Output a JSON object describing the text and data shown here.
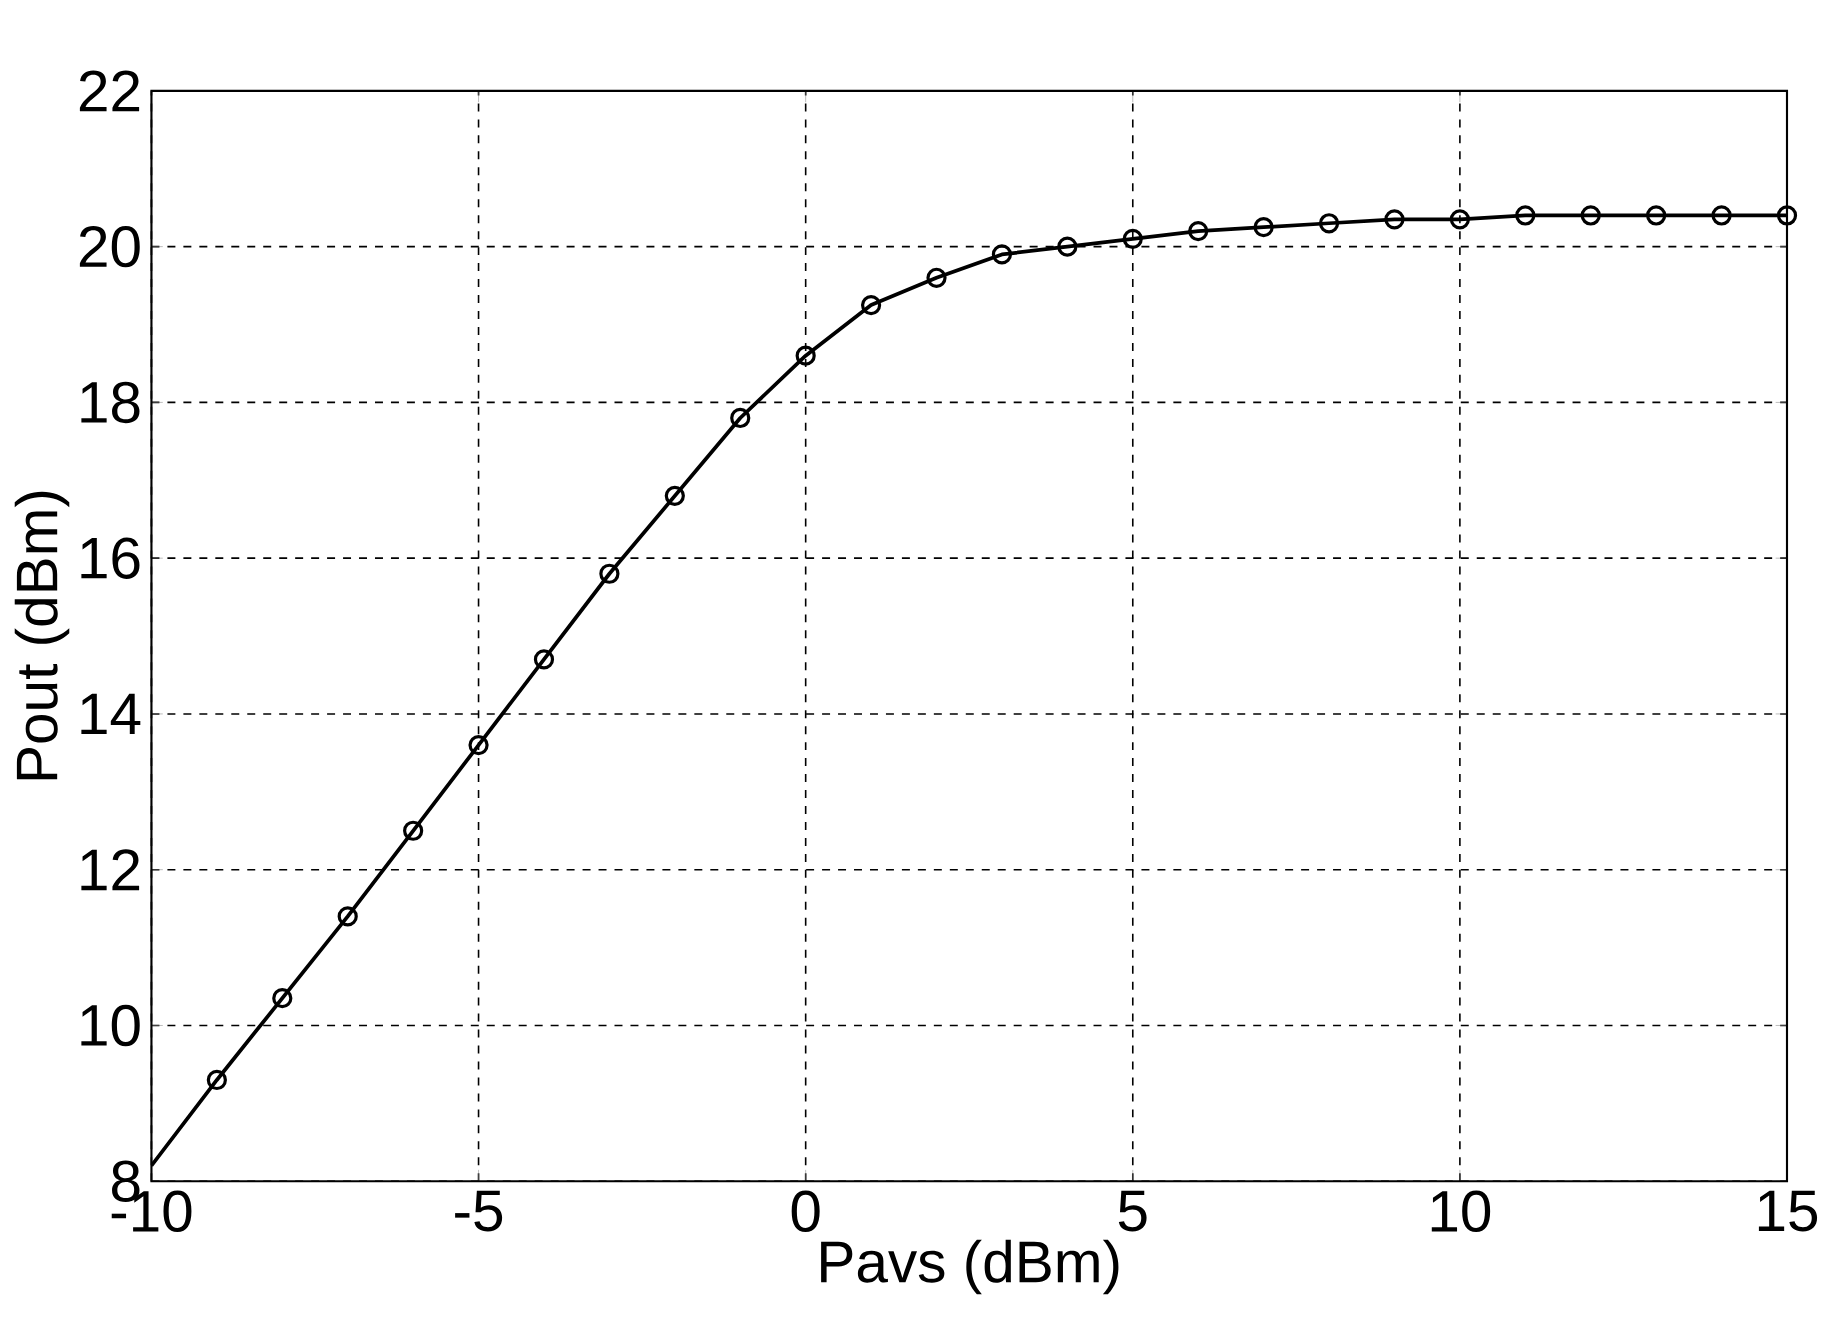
{
  "chart_data": {
    "type": "line",
    "xlabel": "Pavs (dBm)",
    "ylabel": "Pout (dBm)",
    "xlim": [
      -10,
      15
    ],
    "ylim": [
      8,
      22
    ],
    "xticks": [
      -10,
      -5,
      0,
      5,
      10,
      15
    ],
    "yticks": [
      8,
      10,
      12,
      14,
      16,
      18,
      20,
      22
    ],
    "grid": true,
    "line_style": "solid",
    "series": [
      {
        "marker": "none",
        "color": "#000000",
        "x": [
          -10,
          -9,
          -8,
          -7,
          -6,
          -5,
          -4,
          -3,
          -2,
          -1,
          0,
          1,
          2,
          3,
          4,
          5,
          6,
          7,
          8,
          9,
          10,
          11,
          12,
          13,
          14,
          15
        ],
        "values": [
          8.2,
          9.3,
          10.35,
          11.4,
          12.5,
          13.6,
          14.7,
          15.8,
          16.8,
          17.8,
          18.6,
          19.25,
          19.6,
          19.9,
          20.0,
          20.1,
          20.2,
          20.25,
          20.3,
          20.35,
          20.35,
          20.4,
          20.4,
          20.4,
          20.4,
          20.4
        ]
      },
      {
        "type": "scatter",
        "marker": "circle",
        "color": "#000000",
        "x": [
          -9,
          -8,
          -7,
          -6,
          -5,
          -4,
          -3,
          -2,
          -1,
          0,
          1,
          2,
          3,
          4,
          5,
          6,
          7,
          8,
          9,
          10,
          11,
          12,
          13,
          14,
          15
        ],
        "values": [
          9.3,
          10.35,
          11.4,
          12.5,
          13.6,
          14.7,
          15.8,
          16.8,
          17.8,
          18.6,
          19.25,
          19.6,
          19.9,
          20.0,
          20.1,
          20.2,
          20.25,
          20.3,
          20.35,
          20.35,
          20.4,
          20.4,
          20.4,
          20.4,
          20.4
        ]
      }
    ]
  }
}
